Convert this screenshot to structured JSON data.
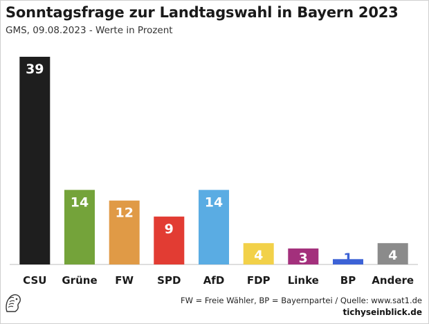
{
  "chart_data": {
    "type": "bar",
    "title": "Sonntagsfrage zur Landtagswahl in Bayern 2023",
    "subtitle": "GMS, 09.08.2023 - Werte in Prozent",
    "categories": [
      "CSU",
      "Grüne",
      "FW",
      "SPD",
      "AfD",
      "FDP",
      "Linke",
      "BP",
      "Andere"
    ],
    "values": [
      39,
      14,
      12,
      9,
      14,
      4,
      3,
      1,
      4
    ],
    "colors": [
      "#1e1e1e",
      "#74a33a",
      "#e09a46",
      "#e23c33",
      "#5aace3",
      "#f2d149",
      "#a3307c",
      "#3c62d6",
      "#8b8b8b"
    ],
    "label_colors": [
      "#ffffff",
      "#ffffff",
      "#ffffff",
      "#ffffff",
      "#ffffff",
      "#ffffff",
      "#ffffff",
      "#3c62d6",
      "#ffffff"
    ],
    "ylim": [
      0,
      39
    ],
    "grid": false,
    "legend": "none"
  },
  "footer": {
    "note": "FW = Freie Wähler, BP = Bayernpartei / Quelle: www.sat1.de",
    "brand": "tichyseinblick.de"
  },
  "icons": {
    "logo": "lion-head-icon"
  }
}
